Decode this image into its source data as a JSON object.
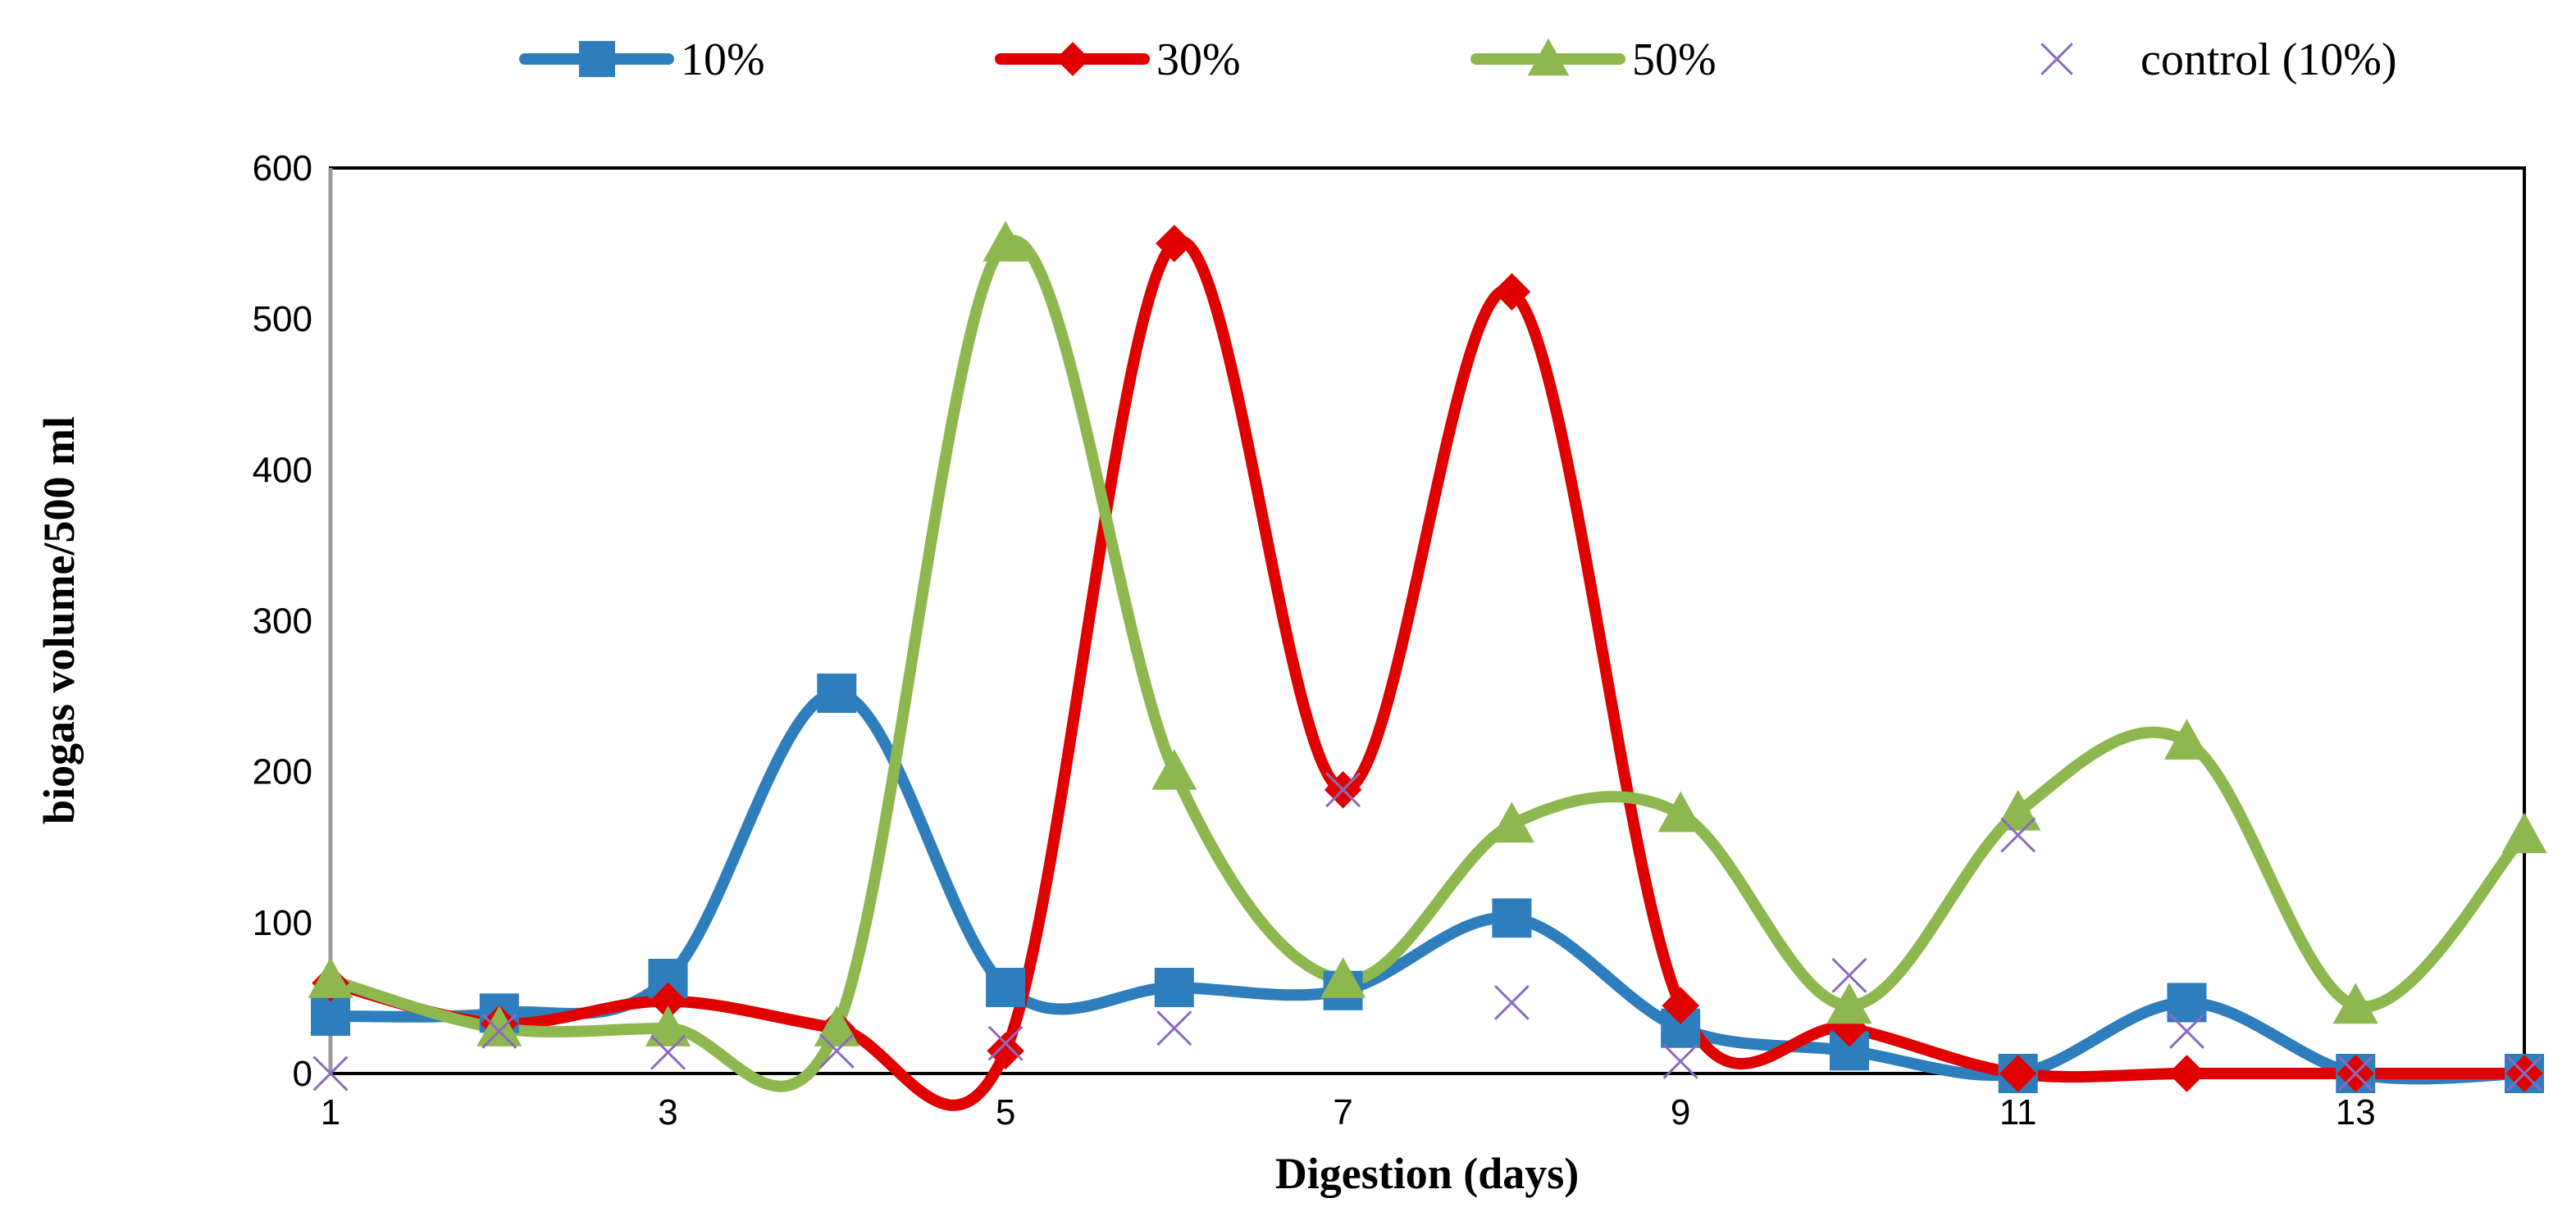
{
  "chart_data": {
    "type": "line",
    "title": "",
    "xlabel": "Digestion (days)",
    "ylabel": "biogas volume/500 ml",
    "xlim": [
      1,
      14
    ],
    "ylim": [
      0,
      600
    ],
    "x": [
      1,
      2,
      3,
      4,
      5,
      6,
      7,
      8,
      9,
      10,
      11,
      12,
      13,
      14
    ],
    "x_tick_labels": [
      "1",
      "3",
      "5",
      "7",
      "9",
      "11",
      "13"
    ],
    "x_tick_values": [
      1,
      3,
      5,
      7,
      9,
      11,
      13
    ],
    "y_ticks": [
      0,
      100,
      200,
      300,
      400,
      500,
      600
    ],
    "legend_position": "top",
    "series": [
      {
        "name": "10%",
        "color": "#2E7EBE",
        "marker": "square",
        "smooth": true,
        "values": [
          38,
          40,
          63,
          252,
          57,
          57,
          55,
          103,
          30,
          15,
          0,
          47,
          0,
          0
        ]
      },
      {
        "name": "30%",
        "color": "#E00000",
        "marker": "diamond",
        "smooth": true,
        "values": [
          60,
          33,
          48,
          30,
          15,
          550,
          188,
          518,
          45,
          30,
          0,
          0,
          0,
          0
        ]
      },
      {
        "name": "50%",
        "color": "#8DB850",
        "marker": "triangle",
        "smooth": true,
        "values": [
          62,
          30,
          30,
          30,
          550,
          200,
          62,
          165,
          172,
          45,
          173,
          220,
          45,
          158
        ]
      },
      {
        "name": "control (10%)",
        "color": "#8B6BBF",
        "marker": "x",
        "smooth": false,
        "line": false,
        "values": [
          0,
          28,
          14,
          15,
          20,
          30,
          188,
          47,
          8,
          65,
          158,
          28,
          0,
          0
        ]
      }
    ]
  }
}
